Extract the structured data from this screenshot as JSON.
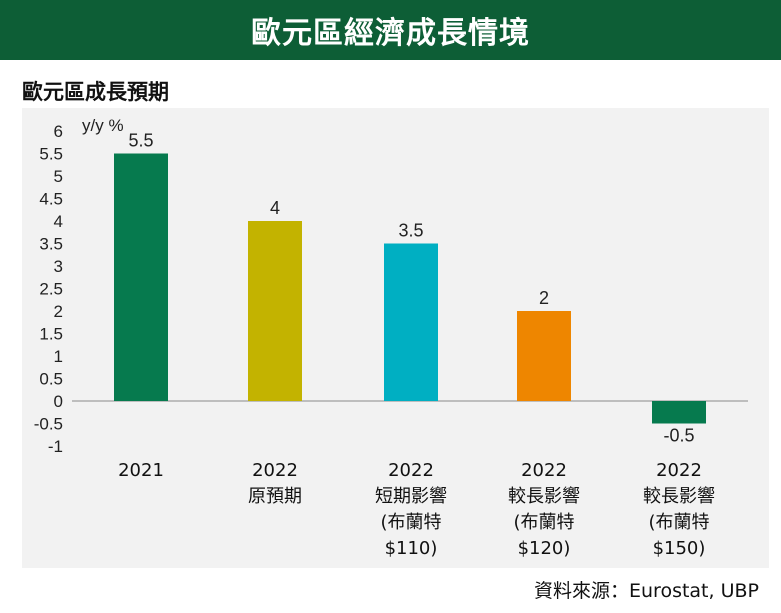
{
  "banner_title": "歐元區經濟成長情境",
  "source": "資料來源：Eurostat, UBP",
  "chart_data": {
    "type": "bar",
    "title": "歐元區成長預期",
    "ylabel": "y/y %",
    "ylim": [
      -1,
      6
    ],
    "yticks": [
      "6",
      "5.5",
      "5",
      "4.5",
      "4",
      "3.5",
      "3",
      "2.5",
      "2",
      "1.5",
      "1",
      "0.5",
      "0",
      "-0.5",
      "-1"
    ],
    "categories": [
      [
        "2021"
      ],
      [
        "2022",
        "原預期"
      ],
      [
        "2022",
        "短期影響",
        "(布蘭特",
        "$110)"
      ],
      [
        "2022",
        "較長影響",
        "(布蘭特",
        "$120)"
      ],
      [
        "2022",
        "較長影響",
        "(布蘭特",
        "$150)"
      ]
    ],
    "values": [
      5.5,
      4,
      3.5,
      2,
      -0.5
    ],
    "value_labels": [
      "5.5",
      "4",
      "3.5",
      "2",
      "-0.5"
    ],
    "colors": [
      "#067a4e",
      "#c3b300",
      "#00afc2",
      "#ee8600",
      "#067a4e"
    ],
    "negative_label_color": "#b0282d",
    "grid": false
  }
}
